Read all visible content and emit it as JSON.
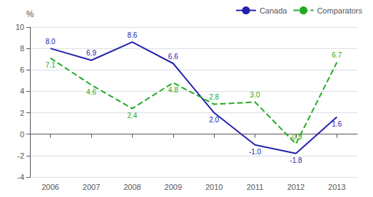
{
  "chart_data": {
    "type": "line",
    "x": [
      2006,
      2007,
      2008,
      2009,
      2010,
      2011,
      2012,
      2013
    ],
    "xlim": [
      2005.5,
      2013.5
    ],
    "xticks": [
      2006,
      2007,
      2008,
      2009,
      2010,
      2011,
      2012,
      2013
    ],
    "ylim": [
      -4,
      10
    ],
    "yticks": [
      -4,
      -2,
      0,
      2,
      4,
      6,
      8,
      10
    ],
    "ylabel": "%",
    "grid": true,
    "legend": "upper right",
    "data_labels": true,
    "series": [
      {
        "name": "Canada",
        "color": "#2222aa",
        "line_style": "solid",
        "values": [
          8.0,
          6.9,
          8.6,
          6.6,
          2.0,
          -1.0,
          -1.8,
          1.6
        ],
        "value_labels": [
          "8.0",
          "6.9",
          "8.6",
          "6.6",
          "2.0",
          "-1.0",
          "-1.8",
          "1.6"
        ]
      },
      {
        "name": "Comparators",
        "color": "#22aa22",
        "line_style": "dashed",
        "values": [
          7.1,
          4.6,
          2.4,
          4.8,
          2.8,
          3.0,
          -0.9,
          6.7
        ],
        "value_labels": [
          "7.1",
          "4.6",
          "2.4",
          "4.8",
          "2.8",
          "3.0",
          "-0.9",
          "6.7"
        ]
      }
    ]
  }
}
